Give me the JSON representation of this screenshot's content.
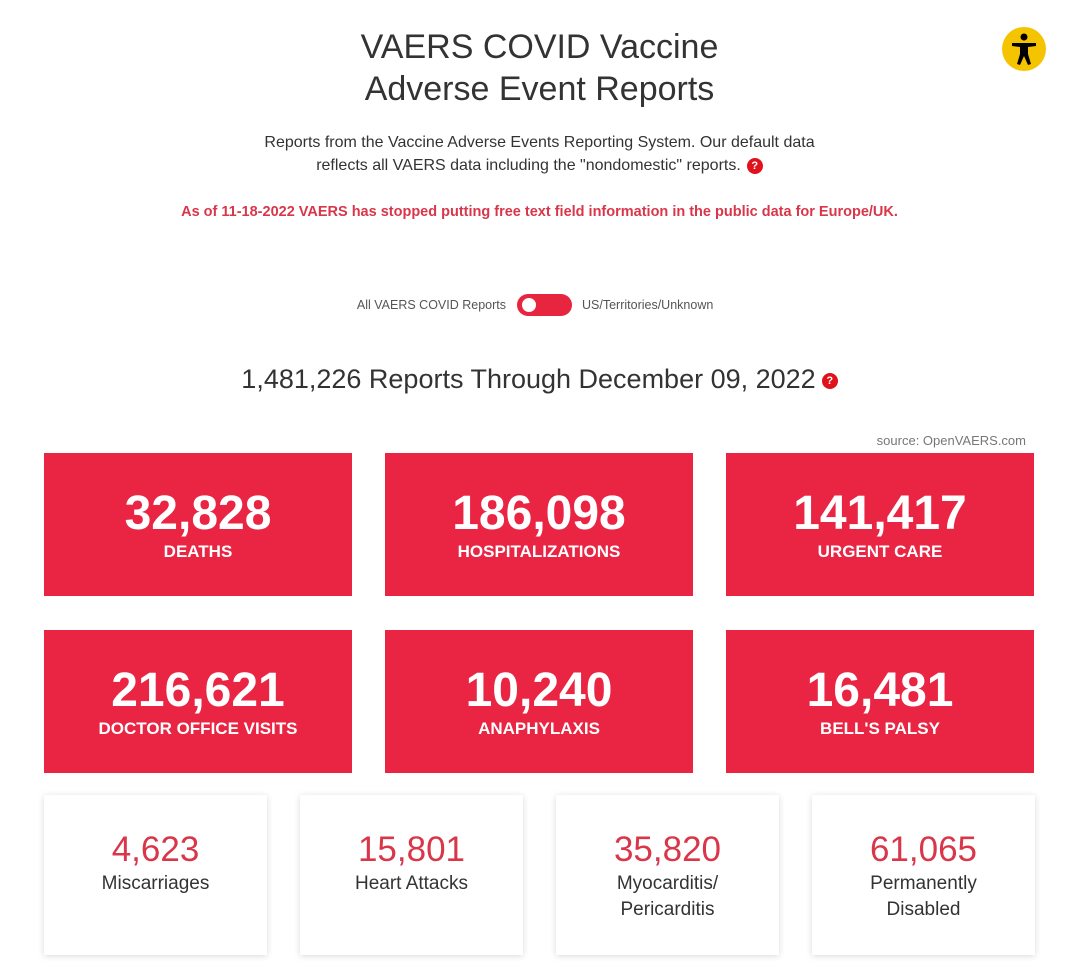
{
  "header": {
    "title_line1": "VAERS COVID Vaccine",
    "title_line2": "Adverse Event Reports",
    "description_line1": "Reports from the Vaccine Adverse Events Reporting System. Our default data",
    "description_line2": "reflects all VAERS data including the \"nondomestic\" reports.",
    "notice": "As of 11-18-2022 VAERS has stopped putting free text field information in the public data for Europe/UK.",
    "help_icon": "?"
  },
  "toggle": {
    "left_label": "All VAERS COVID Reports",
    "right_label": "US/Territories/Unknown"
  },
  "summary": {
    "heading": "1,481,226 Reports Through December 09, 2022",
    "source": "source: OpenVAERS.com"
  },
  "primary_stats": [
    {
      "value": "32,828",
      "label": "DEATHS"
    },
    {
      "value": "186,098",
      "label": "HOSPITALIZATIONS"
    },
    {
      "value": "141,417",
      "label": "URGENT CARE"
    },
    {
      "value": "216,621",
      "label": "DOCTOR OFFICE VISITS"
    },
    {
      "value": "10,240",
      "label": "ANAPHYLAXIS"
    },
    {
      "value": "16,481",
      "label": "BELL'S PALSY"
    }
  ],
  "secondary_stats": [
    {
      "value": "4,623",
      "label": "Miscarriages"
    },
    {
      "value": "15,801",
      "label": "Heart Attacks"
    },
    {
      "value": "35,820",
      "label": "Myocarditis/ Pericarditis"
    },
    {
      "value": "61,065",
      "label": "Permanently Disabled"
    }
  ]
}
